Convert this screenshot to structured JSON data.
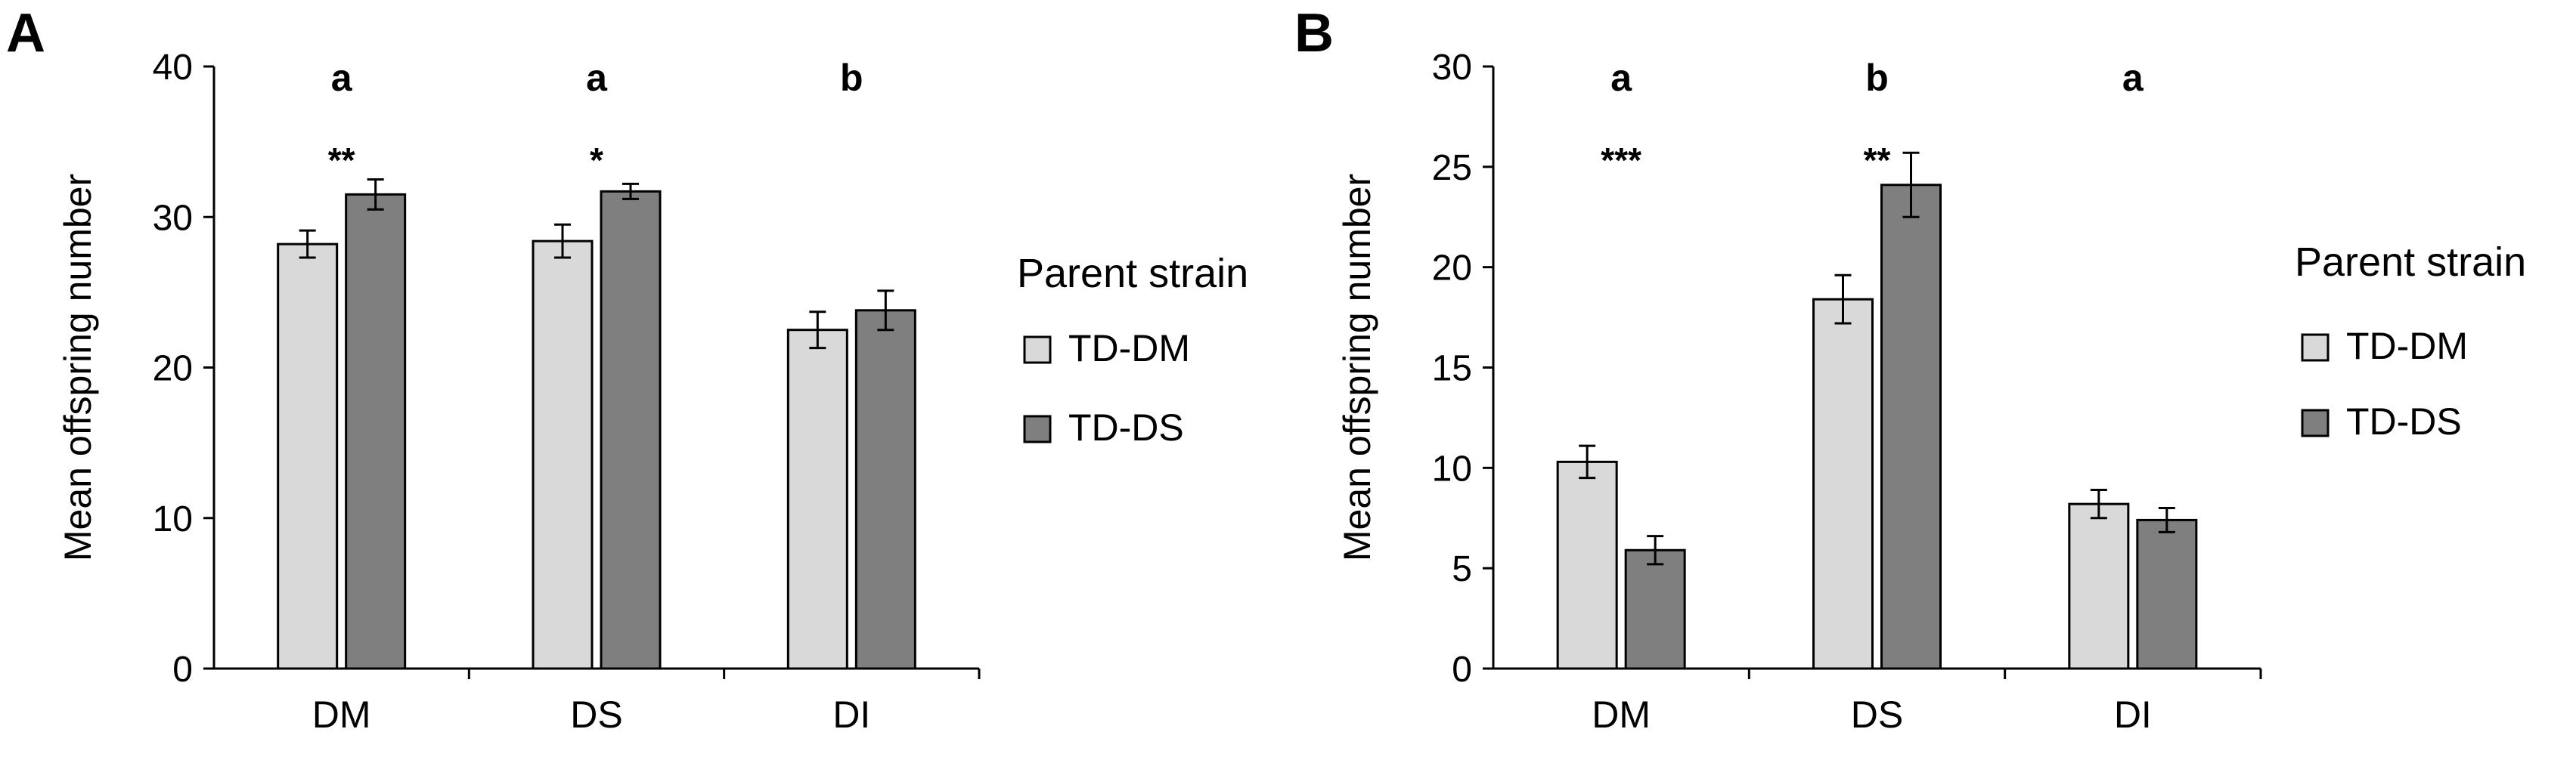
{
  "chart_data": [
    {
      "type": "bar",
      "panel": "A",
      "ylabel": "Mean offspring number",
      "ylim": [
        0,
        40
      ],
      "yticks": [
        0,
        10,
        20,
        30,
        40
      ],
      "categories": [
        "DM",
        "DS",
        "DI"
      ],
      "series": [
        {
          "name": "TD-DM",
          "values": [
            28.2,
            28.4,
            22.5
          ],
          "errors": [
            0.9,
            1.1,
            1.2
          ]
        },
        {
          "name": "TD-DS",
          "values": [
            31.5,
            31.7,
            23.8
          ],
          "errors": [
            1.0,
            0.5,
            1.3
          ]
        }
      ],
      "group_letters": [
        "a",
        "a",
        "b"
      ],
      "significance": [
        "**",
        "*",
        ""
      ],
      "legend": {
        "title": "Parent strain",
        "items": [
          "TD-DM",
          "TD-DS"
        ],
        "placement": "right"
      }
    },
    {
      "type": "bar",
      "panel": "B",
      "ylabel": "Mean offspring number",
      "ylim": [
        0,
        30
      ],
      "yticks": [
        0,
        5,
        10,
        15,
        20,
        25,
        30
      ],
      "categories": [
        "DM",
        "DS",
        "DI"
      ],
      "series": [
        {
          "name": "TD-DM",
          "values": [
            10.3,
            18.4,
            8.2
          ],
          "errors": [
            0.8,
            1.2,
            0.7
          ]
        },
        {
          "name": "TD-DS",
          "values": [
            5.9,
            24.1,
            7.4
          ],
          "errors": [
            0.7,
            1.6,
            0.6
          ]
        }
      ],
      "group_letters": [
        "a",
        "b",
        "a"
      ],
      "significance": [
        "***",
        "**",
        ""
      ],
      "legend": {
        "title": "Parent strain",
        "items": [
          "TD-DM",
          "TD-DS"
        ],
        "placement": "right"
      }
    }
  ],
  "colors": {
    "TD-DM": "#d9d9d9",
    "TD-DS": "#7f7f7f",
    "axis": "#000000"
  }
}
